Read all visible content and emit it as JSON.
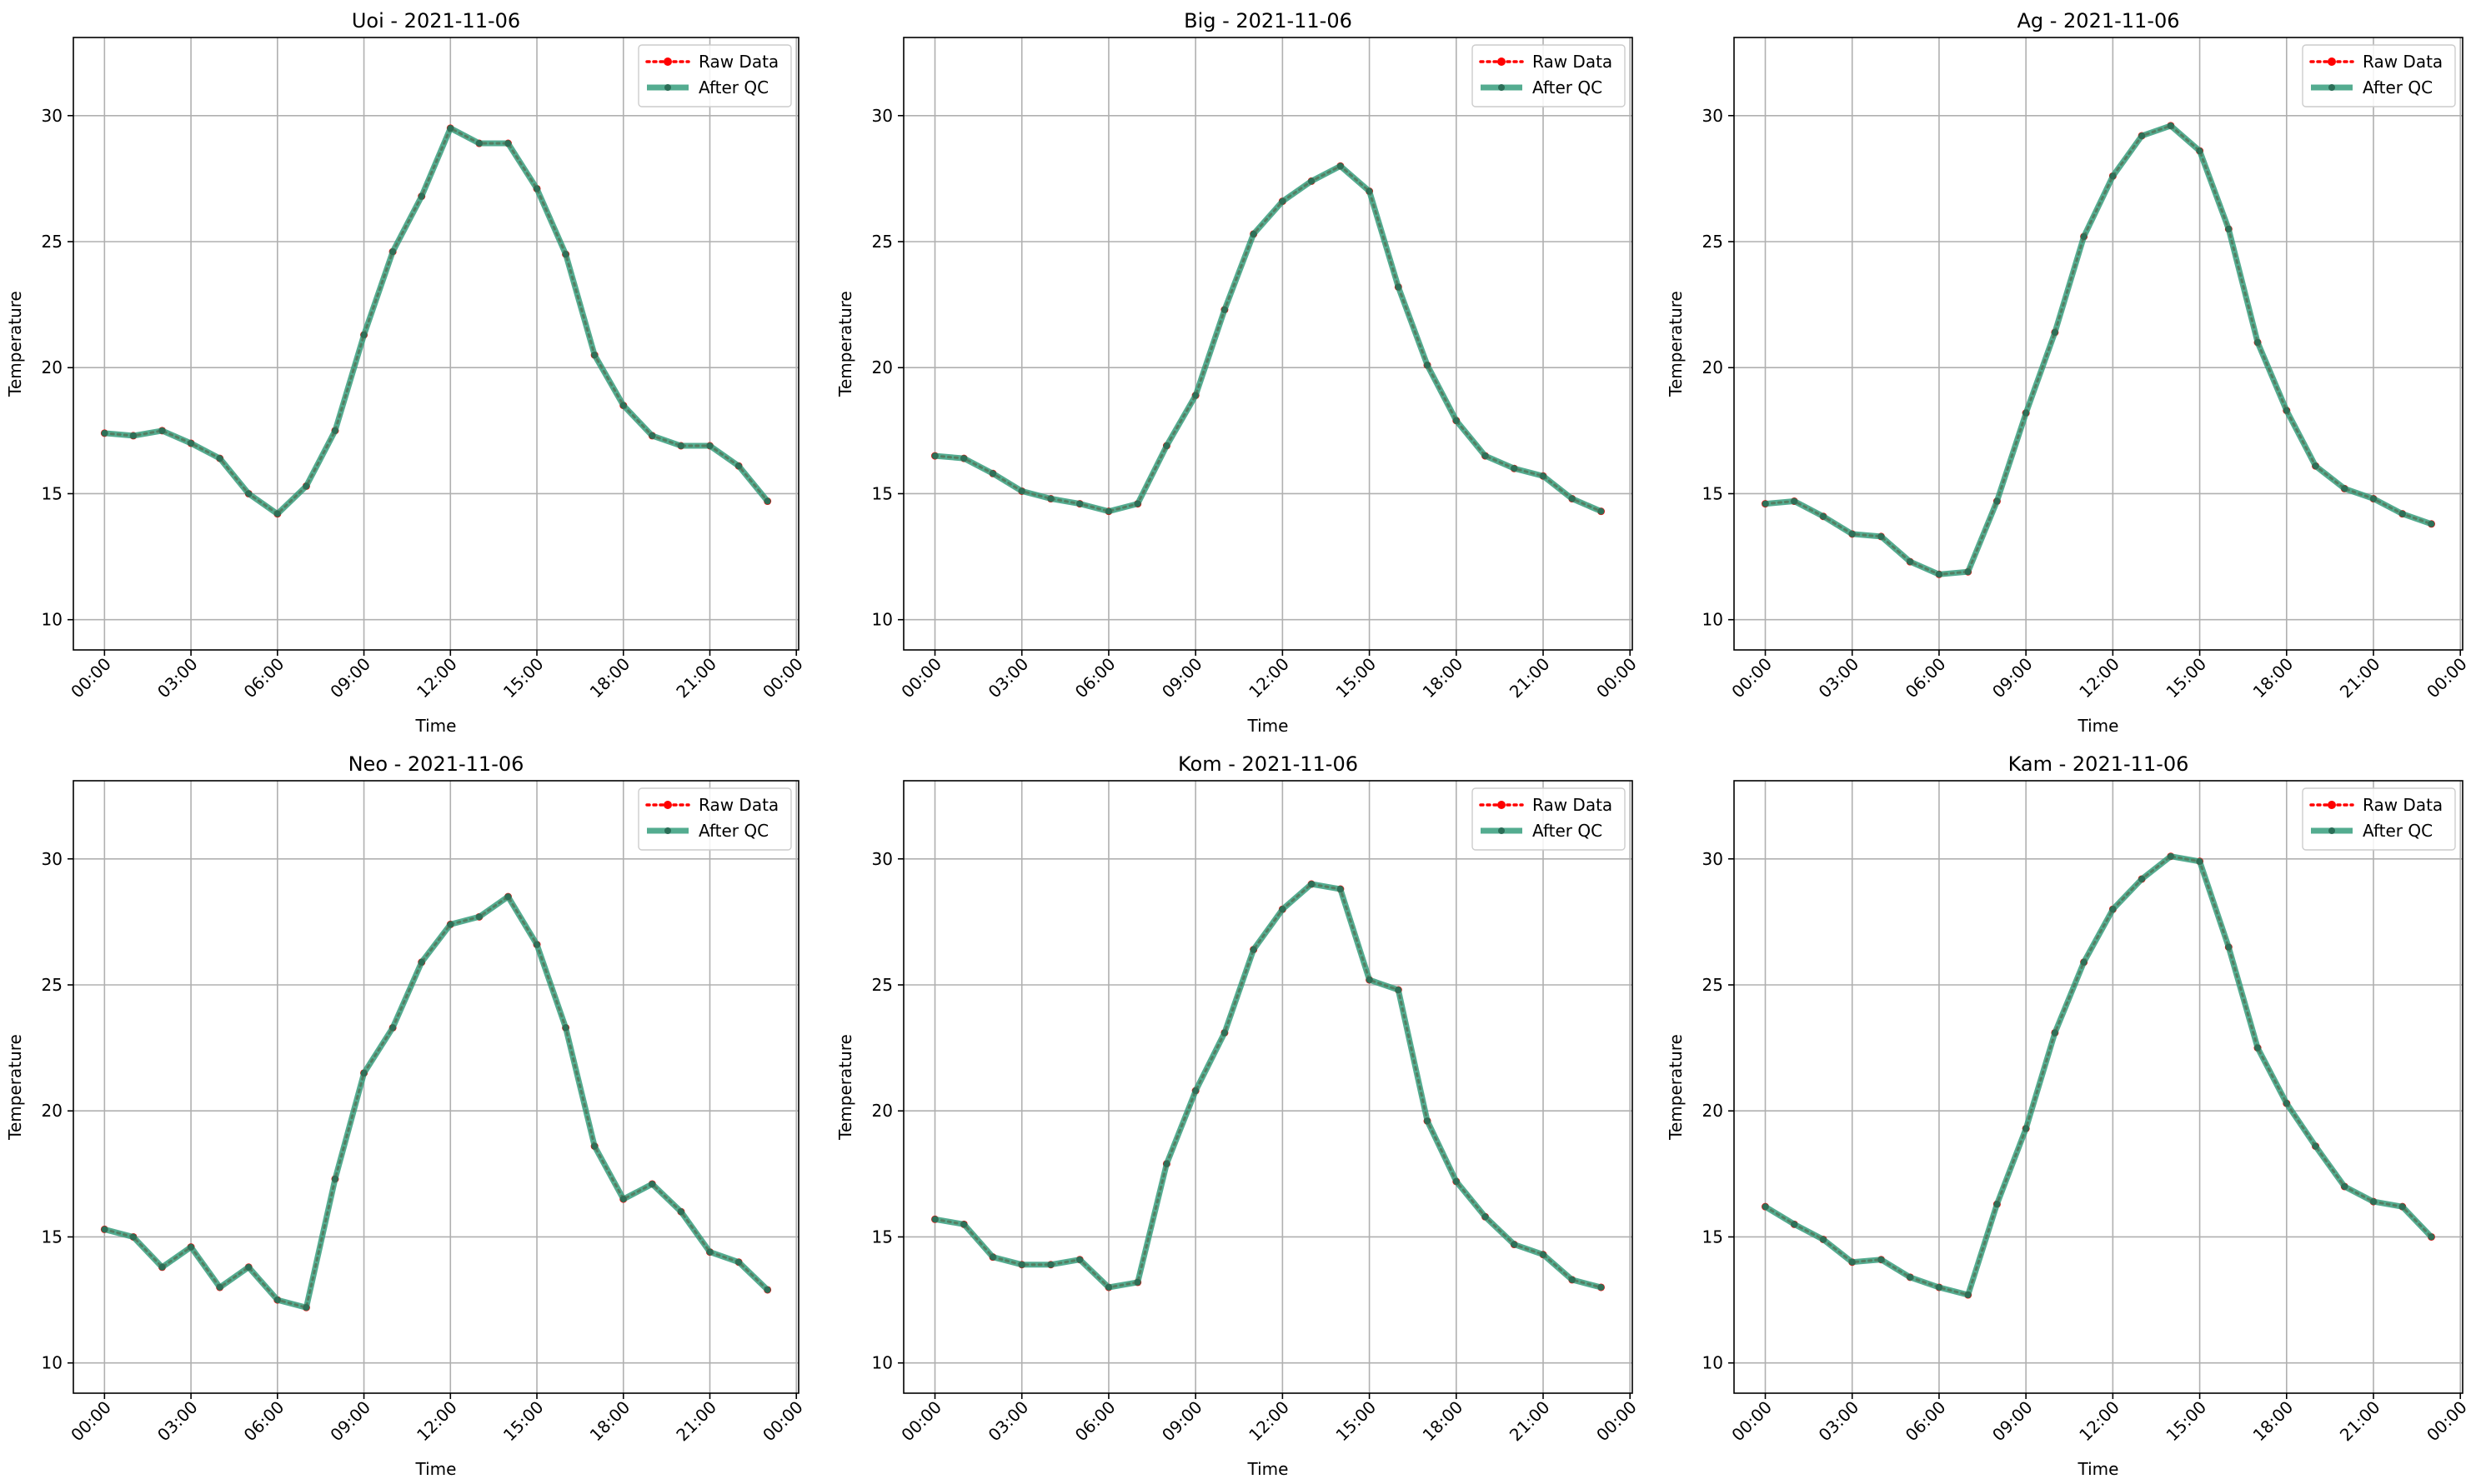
{
  "chart_data": [
    {
      "type": "line",
      "title": "Uoi - 2021-11-06",
      "xlabel": "Time",
      "ylabel": "Temperature",
      "x_ticks": [
        "00:00",
        "03:00",
        "06:00",
        "09:00",
        "12:00",
        "15:00",
        "18:00",
        "21:00",
        "00:00"
      ],
      "y_ticks": [
        10,
        15,
        20,
        25,
        30
      ],
      "ylim": [
        8.8,
        33.1
      ],
      "grid": true,
      "legend": "top-right",
      "x": [
        "00:00",
        "01:00",
        "02:00",
        "03:00",
        "04:00",
        "05:00",
        "06:00",
        "07:00",
        "08:00",
        "09:00",
        "10:00",
        "11:00",
        "12:00",
        "13:00",
        "14:00",
        "15:00",
        "16:00",
        "17:00",
        "18:00",
        "19:00",
        "20:00",
        "21:00",
        "22:00",
        "23:00"
      ],
      "series": [
        {
          "name": "Raw Data",
          "color": "#ff0000",
          "style": "dotted",
          "values": [
            17.4,
            17.3,
            17.5,
            17.0,
            16.4,
            15.0,
            14.2,
            15.3,
            17.5,
            21.3,
            24.6,
            26.8,
            29.5,
            28.9,
            28.9,
            27.1,
            24.5,
            20.5,
            18.5,
            17.3,
            16.9,
            16.9,
            16.1,
            14.7
          ]
        },
        {
          "name": "After QC",
          "color": "#2e9a78",
          "style": "solid",
          "values": [
            17.4,
            17.3,
            17.5,
            17.0,
            16.4,
            15.0,
            14.2,
            15.3,
            17.5,
            21.3,
            24.6,
            26.8,
            29.5,
            28.9,
            28.9,
            27.1,
            24.5,
            20.5,
            18.5,
            17.3,
            16.9,
            16.9,
            16.1,
            14.7
          ]
        }
      ]
    },
    {
      "type": "line",
      "title": "Big - 2021-11-06",
      "xlabel": "Time",
      "ylabel": "Temperature",
      "x_ticks": [
        "00:00",
        "03:00",
        "06:00",
        "09:00",
        "12:00",
        "15:00",
        "18:00",
        "21:00",
        "00:00"
      ],
      "y_ticks": [
        10,
        15,
        20,
        25,
        30
      ],
      "ylim": [
        8.8,
        33.1
      ],
      "grid": true,
      "legend": "top-right",
      "x": [
        "00:00",
        "01:00",
        "02:00",
        "03:00",
        "04:00",
        "05:00",
        "06:00",
        "07:00",
        "08:00",
        "09:00",
        "10:00",
        "11:00",
        "12:00",
        "13:00",
        "14:00",
        "15:00",
        "16:00",
        "17:00",
        "18:00",
        "19:00",
        "20:00",
        "21:00",
        "22:00",
        "23:00"
      ],
      "series": [
        {
          "name": "Raw Data",
          "color": "#ff0000",
          "style": "dotted",
          "values": [
            16.5,
            16.4,
            15.8,
            15.1,
            14.8,
            14.6,
            14.3,
            14.6,
            16.9,
            18.9,
            22.3,
            25.3,
            26.6,
            27.4,
            28.0,
            27.0,
            23.2,
            20.1,
            17.9,
            16.5,
            16.0,
            15.7,
            14.8,
            14.3
          ]
        },
        {
          "name": "After QC",
          "color": "#2e9a78",
          "style": "solid",
          "values": [
            16.5,
            16.4,
            15.8,
            15.1,
            14.8,
            14.6,
            14.3,
            14.6,
            16.9,
            18.9,
            22.3,
            25.3,
            26.6,
            27.4,
            28.0,
            27.0,
            23.2,
            20.1,
            17.9,
            16.5,
            16.0,
            15.7,
            14.8,
            14.3
          ]
        }
      ]
    },
    {
      "type": "line",
      "title": "Ag - 2021-11-06",
      "xlabel": "Time",
      "ylabel": "Temperature",
      "x_ticks": [
        "00:00",
        "03:00",
        "06:00",
        "09:00",
        "12:00",
        "15:00",
        "18:00",
        "21:00",
        "00:00"
      ],
      "y_ticks": [
        10,
        15,
        20,
        25,
        30
      ],
      "ylim": [
        8.8,
        33.1
      ],
      "grid": true,
      "legend": "top-right",
      "x": [
        "00:00",
        "01:00",
        "02:00",
        "03:00",
        "04:00",
        "05:00",
        "06:00",
        "07:00",
        "08:00",
        "09:00",
        "10:00",
        "11:00",
        "12:00",
        "13:00",
        "14:00",
        "15:00",
        "16:00",
        "17:00",
        "18:00",
        "19:00",
        "20:00",
        "21:00",
        "22:00",
        "23:00"
      ],
      "series": [
        {
          "name": "Raw Data",
          "color": "#ff0000",
          "style": "dotted",
          "values": [
            14.6,
            14.7,
            14.1,
            13.4,
            13.3,
            12.3,
            11.8,
            11.9,
            14.7,
            18.2,
            21.4,
            25.2,
            27.6,
            29.2,
            29.6,
            28.6,
            25.5,
            21.0,
            18.3,
            16.1,
            15.2,
            14.8,
            14.2,
            13.8
          ]
        },
        {
          "name": "After QC",
          "color": "#2e9a78",
          "style": "solid",
          "values": [
            14.6,
            14.7,
            14.1,
            13.4,
            13.3,
            12.3,
            11.8,
            11.9,
            14.7,
            18.2,
            21.4,
            25.2,
            27.6,
            29.2,
            29.6,
            28.6,
            25.5,
            21.0,
            18.3,
            16.1,
            15.2,
            14.8,
            14.2,
            13.8
          ]
        }
      ]
    },
    {
      "type": "line",
      "title": "Neo - 2021-11-06",
      "xlabel": "Time",
      "ylabel": "Temperature",
      "x_ticks": [
        "00:00",
        "03:00",
        "06:00",
        "09:00",
        "12:00",
        "15:00",
        "18:00",
        "21:00",
        "00:00"
      ],
      "y_ticks": [
        10,
        15,
        20,
        25,
        30
      ],
      "ylim": [
        8.8,
        33.1
      ],
      "grid": true,
      "legend": "top-right",
      "x": [
        "00:00",
        "01:00",
        "02:00",
        "03:00",
        "04:00",
        "05:00",
        "06:00",
        "07:00",
        "08:00",
        "09:00",
        "10:00",
        "11:00",
        "12:00",
        "13:00",
        "14:00",
        "15:00",
        "16:00",
        "17:00",
        "18:00",
        "19:00",
        "20:00",
        "21:00",
        "22:00",
        "23:00"
      ],
      "series": [
        {
          "name": "Raw Data",
          "color": "#ff0000",
          "style": "dotted",
          "values": [
            15.3,
            15.0,
            13.8,
            14.6,
            13.0,
            13.8,
            12.5,
            12.2,
            17.3,
            21.5,
            23.3,
            25.9,
            27.4,
            27.7,
            28.5,
            26.6,
            23.3,
            18.6,
            16.5,
            17.1,
            16.0,
            14.4,
            14.0,
            12.9
          ]
        },
        {
          "name": "After QC",
          "color": "#2e9a78",
          "style": "solid",
          "values": [
            15.3,
            15.0,
            13.8,
            14.6,
            13.0,
            13.8,
            12.5,
            12.2,
            17.3,
            21.5,
            23.3,
            25.9,
            27.4,
            27.7,
            28.5,
            26.6,
            23.3,
            18.6,
            16.5,
            17.1,
            16.0,
            14.4,
            14.0,
            12.9
          ]
        }
      ]
    },
    {
      "type": "line",
      "title": "Kom - 2021-11-06",
      "xlabel": "Time",
      "ylabel": "Temperature",
      "x_ticks": [
        "00:00",
        "03:00",
        "06:00",
        "09:00",
        "12:00",
        "15:00",
        "18:00",
        "21:00",
        "00:00"
      ],
      "y_ticks": [
        10,
        15,
        20,
        25,
        30
      ],
      "ylim": [
        8.8,
        33.1
      ],
      "grid": true,
      "legend": "top-right",
      "x": [
        "00:00",
        "01:00",
        "02:00",
        "03:00",
        "04:00",
        "05:00",
        "06:00",
        "07:00",
        "08:00",
        "09:00",
        "10:00",
        "11:00",
        "12:00",
        "13:00",
        "14:00",
        "15:00",
        "16:00",
        "17:00",
        "18:00",
        "19:00",
        "20:00",
        "21:00",
        "22:00",
        "23:00"
      ],
      "series": [
        {
          "name": "Raw Data",
          "color": "#ff0000",
          "style": "dotted",
          "values": [
            15.7,
            15.5,
            14.2,
            13.9,
            13.9,
            14.1,
            13.0,
            13.2,
            17.9,
            20.8,
            23.1,
            26.4,
            28.0,
            29.0,
            28.8,
            25.2,
            24.8,
            19.6,
            17.2,
            15.8,
            14.7,
            14.3,
            13.3,
            13.0
          ]
        },
        {
          "name": "After QC",
          "color": "#2e9a78",
          "style": "solid",
          "values": [
            15.7,
            15.5,
            14.2,
            13.9,
            13.9,
            14.1,
            13.0,
            13.2,
            17.9,
            20.8,
            23.1,
            26.4,
            28.0,
            29.0,
            28.8,
            25.2,
            24.8,
            19.6,
            17.2,
            15.8,
            14.7,
            14.3,
            13.3,
            13.0
          ]
        }
      ]
    },
    {
      "type": "line",
      "title": "Kam - 2021-11-06",
      "xlabel": "Time",
      "ylabel": "Temperature",
      "x_ticks": [
        "00:00",
        "03:00",
        "06:00",
        "09:00",
        "12:00",
        "15:00",
        "18:00",
        "21:00",
        "00:00"
      ],
      "y_ticks": [
        10,
        15,
        20,
        25,
        30
      ],
      "ylim": [
        8.8,
        33.1
      ],
      "grid": true,
      "legend": "top-right",
      "x": [
        "00:00",
        "01:00",
        "02:00",
        "03:00",
        "04:00",
        "05:00",
        "06:00",
        "07:00",
        "08:00",
        "09:00",
        "10:00",
        "11:00",
        "12:00",
        "13:00",
        "14:00",
        "15:00",
        "16:00",
        "17:00",
        "18:00",
        "19:00",
        "20:00",
        "21:00",
        "22:00",
        "23:00"
      ],
      "series": [
        {
          "name": "Raw Data",
          "color": "#ff0000",
          "style": "dotted",
          "values": [
            16.2,
            15.5,
            14.9,
            14.0,
            14.1,
            13.4,
            13.0,
            12.7,
            16.3,
            19.3,
            23.1,
            25.9,
            28.0,
            29.2,
            30.1,
            29.9,
            26.5,
            22.5,
            20.3,
            18.6,
            17.0,
            16.4,
            16.2,
            15.0
          ]
        },
        {
          "name": "After QC",
          "color": "#2e9a78",
          "style": "solid",
          "values": [
            16.2,
            15.5,
            14.9,
            14.0,
            14.1,
            13.4,
            13.0,
            12.7,
            16.3,
            19.3,
            23.1,
            25.9,
            28.0,
            29.2,
            30.1,
            29.9,
            26.5,
            22.5,
            20.3,
            18.6,
            17.0,
            16.4,
            16.2,
            15.0
          ]
        }
      ]
    }
  ]
}
